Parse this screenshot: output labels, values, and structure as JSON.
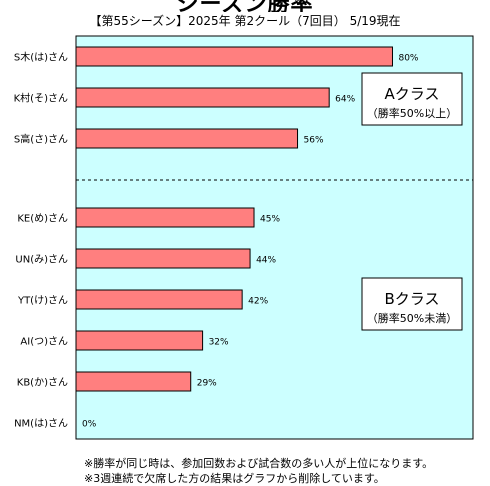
{
  "chart_data": {
    "type": "bar",
    "orientation": "horizontal",
    "title": "シーズン勝率",
    "subtitle": "【第55シーズン】2025年  第2クール（7回目） 5/19現在",
    "categories": [
      "S木(は)さん",
      "K村(そ)さん",
      "S高(さ)さん",
      "KE(め)さん",
      "UN(み)さん",
      "YT(け)さん",
      "AI(つ)さん",
      "KB(か)さん",
      "NM(は)さん"
    ],
    "values": [
      80,
      64,
      56,
      45,
      44,
      42,
      32,
      29,
      0
    ],
    "value_labels": [
      "80%",
      "64%",
      "56%",
      "45%",
      "44%",
      "42%",
      "32%",
      "29%",
      "0%"
    ],
    "xlim": [
      0,
      100
    ],
    "grid": false,
    "bar_color": "#ff7f7f",
    "plot_background": "#ccffff",
    "class_a": {
      "title": "Aクラス",
      "condition": "（勝率50%以上）",
      "rows": 3
    },
    "class_b": {
      "title": "Bクラス",
      "condition": "（勝率50%未満）"
    }
  },
  "notes": [
    "※勝率が同じ時は、参加回数および試合数の多い人が上位になります。",
    "※3週連続で欠席した方の結果はグラフから削除しています。"
  ]
}
